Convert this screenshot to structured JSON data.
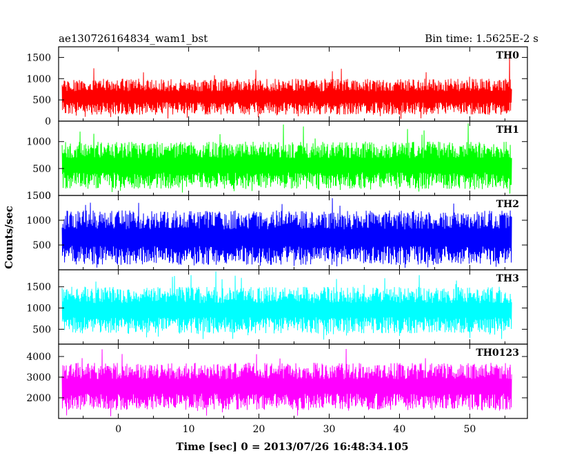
{
  "header": {
    "title": "ae130726164834_wam1_bst",
    "bin_time": "Bin time: 1.5625E-2 s"
  },
  "chart_data": {
    "type": "line",
    "title": "ae130726164834_wam1_bst",
    "subtitle": "Bin time: 1.5625E-2 s",
    "xlabel": "Time [sec] 0 = 2013/07/26 16:48:34.105",
    "ylabel": "Counts/sec",
    "xlim": [
      -8.5,
      58.2
    ],
    "x_range_data": [
      -8,
      56
    ],
    "x_ticks": [
      0,
      10,
      20,
      30,
      40,
      50
    ],
    "x_tick_labels": [
      "0",
      "10",
      "20",
      "30",
      "40",
      "50"
    ],
    "bin_time_s": 0.015625,
    "grid": false,
    "legend": "none",
    "panels": [
      {
        "name": "TH0",
        "color": "#ff0000",
        "ylim": [
          0,
          1750
        ],
        "y_ticks": [
          0,
          500,
          1000,
          1500
        ],
        "y_tick_labels": [
          "0",
          "500",
          "1000",
          "1500"
        ],
        "typical_low": 150,
        "typical_high": 1000,
        "max_peak": 1680,
        "min_dip": 50
      },
      {
        "name": "TH1",
        "color": "#00ff00",
        "ylim": [
          0,
          1380
        ],
        "y_ticks": [
          0,
          500,
          1000
        ],
        "y_tick_labels": [
          "0",
          "500",
          "1000"
        ],
        "typical_low": 120,
        "typical_high": 1000,
        "max_peak": 1340,
        "min_dip": 30
      },
      {
        "name": "TH2",
        "color": "#0000ff",
        "ylim": [
          0,
          1500
        ],
        "y_ticks": [
          500,
          1000,
          1500
        ],
        "y_tick_labels": [
          "500",
          "1000",
          "1500"
        ],
        "typical_low": 100,
        "typical_high": 1200,
        "max_peak": 1500,
        "min_dip": 40
      },
      {
        "name": "TH3",
        "color": "#00ffff",
        "ylim": [
          150,
          1900
        ],
        "y_ticks": [
          500,
          1000,
          1500
        ],
        "y_tick_labels": [
          "500",
          "1000",
          "1500"
        ],
        "typical_low": 400,
        "typical_high": 1500,
        "max_peak": 1880,
        "min_dip": 250
      },
      {
        "name": "TH0123",
        "color": "#ff00ff",
        "ylim": [
          1000,
          4600
        ],
        "y_ticks": [
          2000,
          3000,
          4000
        ],
        "y_tick_labels": [
          "2000",
          "3000",
          "4000"
        ],
        "typical_low": 1400,
        "typical_high": 3700,
        "max_peak": 4500,
        "min_dip": 1100
      }
    ]
  }
}
